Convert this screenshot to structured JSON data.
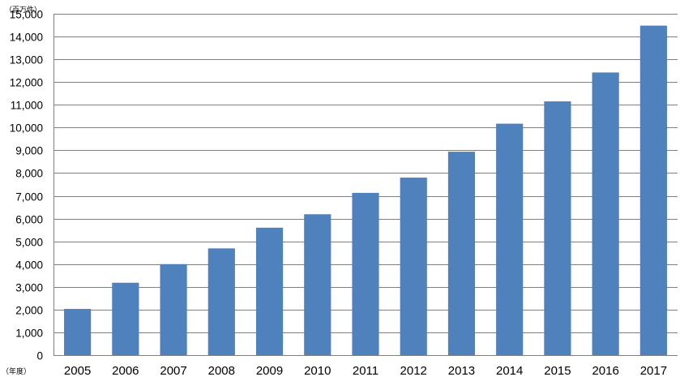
{
  "chart_data": {
    "type": "bar",
    "y_unit_label": "（百万件）",
    "x_unit_label": "（年度）",
    "categories": [
      "2005",
      "2006",
      "2007",
      "2008",
      "2009",
      "2010",
      "2011",
      "2012",
      "2013",
      "2014",
      "2015",
      "2016",
      "2017"
    ],
    "values": [
      2030,
      3180,
      4000,
      4690,
      5600,
      6190,
      7130,
      7800,
      8940,
      10170,
      11150,
      12420,
      14480
    ],
    "ylim": [
      0,
      15000
    ],
    "y_ticks": [
      0,
      1000,
      2000,
      3000,
      4000,
      5000,
      6000,
      7000,
      8000,
      9000,
      10000,
      11000,
      12000,
      13000,
      14000,
      15000
    ],
    "y_tick_labels": [
      "0",
      "1,000",
      "2,000",
      "3,000",
      "4,000",
      "5,000",
      "6,000",
      "7,000",
      "8,000",
      "9,000",
      "10,000",
      "11,000",
      "12,000",
      "13,000",
      "14,000",
      "15,000"
    ],
    "grid": true,
    "bar_color": "#4f81bd",
    "grid_color": "#808080",
    "axis_color": "#808080"
  }
}
